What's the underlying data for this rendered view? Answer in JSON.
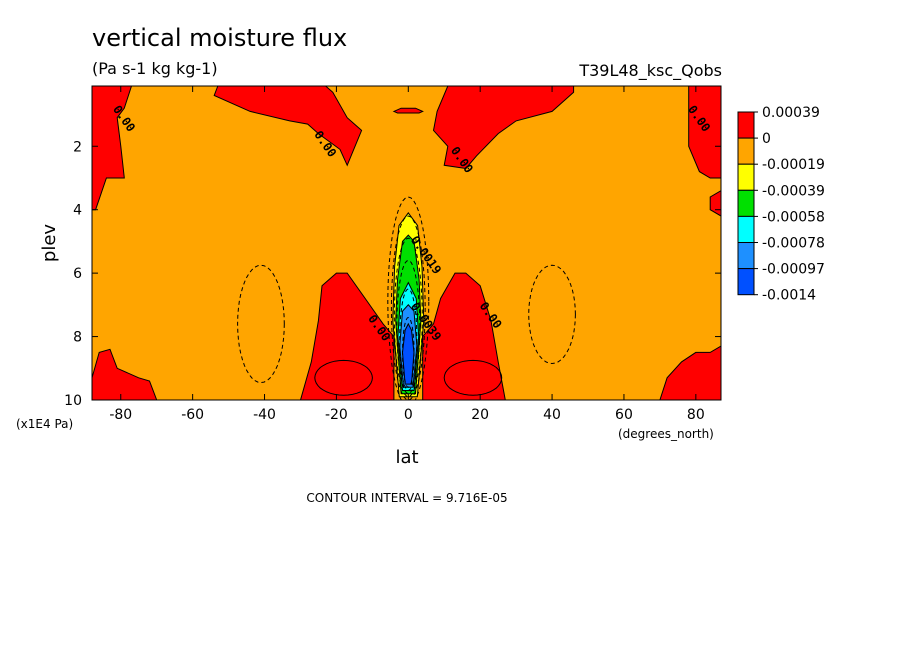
{
  "chart_data": {
    "type": "contour",
    "title": "vertical moisture flux",
    "units": "(Pa s-1 kg kg-1)",
    "run_label": "T39L48_ksc_Qobs",
    "xlabel": "lat",
    "ylabel": "plev",
    "x_unit_label": "(degrees_north)",
    "y_unit_label": "(x1E4 Pa)",
    "xlim": [
      -88,
      87
    ],
    "ylim": [
      10,
      0.1
    ],
    "x_ticks": [
      -80,
      -60,
      -40,
      -20,
      0,
      20,
      40,
      60,
      80
    ],
    "x_tick_labels": [
      "-80",
      "-60",
      "-40",
      "-20",
      "0",
      "20",
      "40",
      "60",
      "80"
    ],
    "y_ticks": [
      2,
      4,
      6,
      8,
      10
    ],
    "y_tick_labels": [
      "2",
      "4",
      "6",
      "8",
      "10"
    ],
    "footer": "CONTOUR INTERVAL = 9.716E-05",
    "contour_labels": [
      {
        "text": "0.00",
        "lat": -80,
        "plev": 1.2
      },
      {
        "text": "0.00",
        "lat": -24,
        "plev": 2.0
      },
      {
        "text": "0.00",
        "lat": 14,
        "plev": 2.5
      },
      {
        "text": "0.00",
        "lat": 80,
        "plev": 1.2
      },
      {
        "text": "0.00",
        "lat": 22,
        "plev": 7.4
      },
      {
        "text": "0.00",
        "lat": -9,
        "plev": 7.8
      },
      {
        "text": "0.0019",
        "lat": 4,
        "plev": 5.5
      },
      {
        "text": "0.0039",
        "lat": 4,
        "plev": 7.6
      }
    ],
    "colorbar": {
      "labels": [
        "0.00039",
        "0",
        "-0.00019",
        "-0.00039",
        "-0.00058",
        "-0.00078",
        "-0.00097",
        "-0.0014"
      ],
      "colors": [
        "#ff0000",
        "#ffa500",
        "#ffff00",
        "#00e000",
        "#00ffff",
        "#1e90ff",
        "#0050ff"
      ]
    },
    "colors": {
      "positive": "#ff0000",
      "background": "#ffa500",
      "yellow": "#ffff00",
      "green": "#00e000",
      "cyan": "#00ffff",
      "lightblue": "#1e90ff",
      "blue": "#0050ff"
    }
  }
}
